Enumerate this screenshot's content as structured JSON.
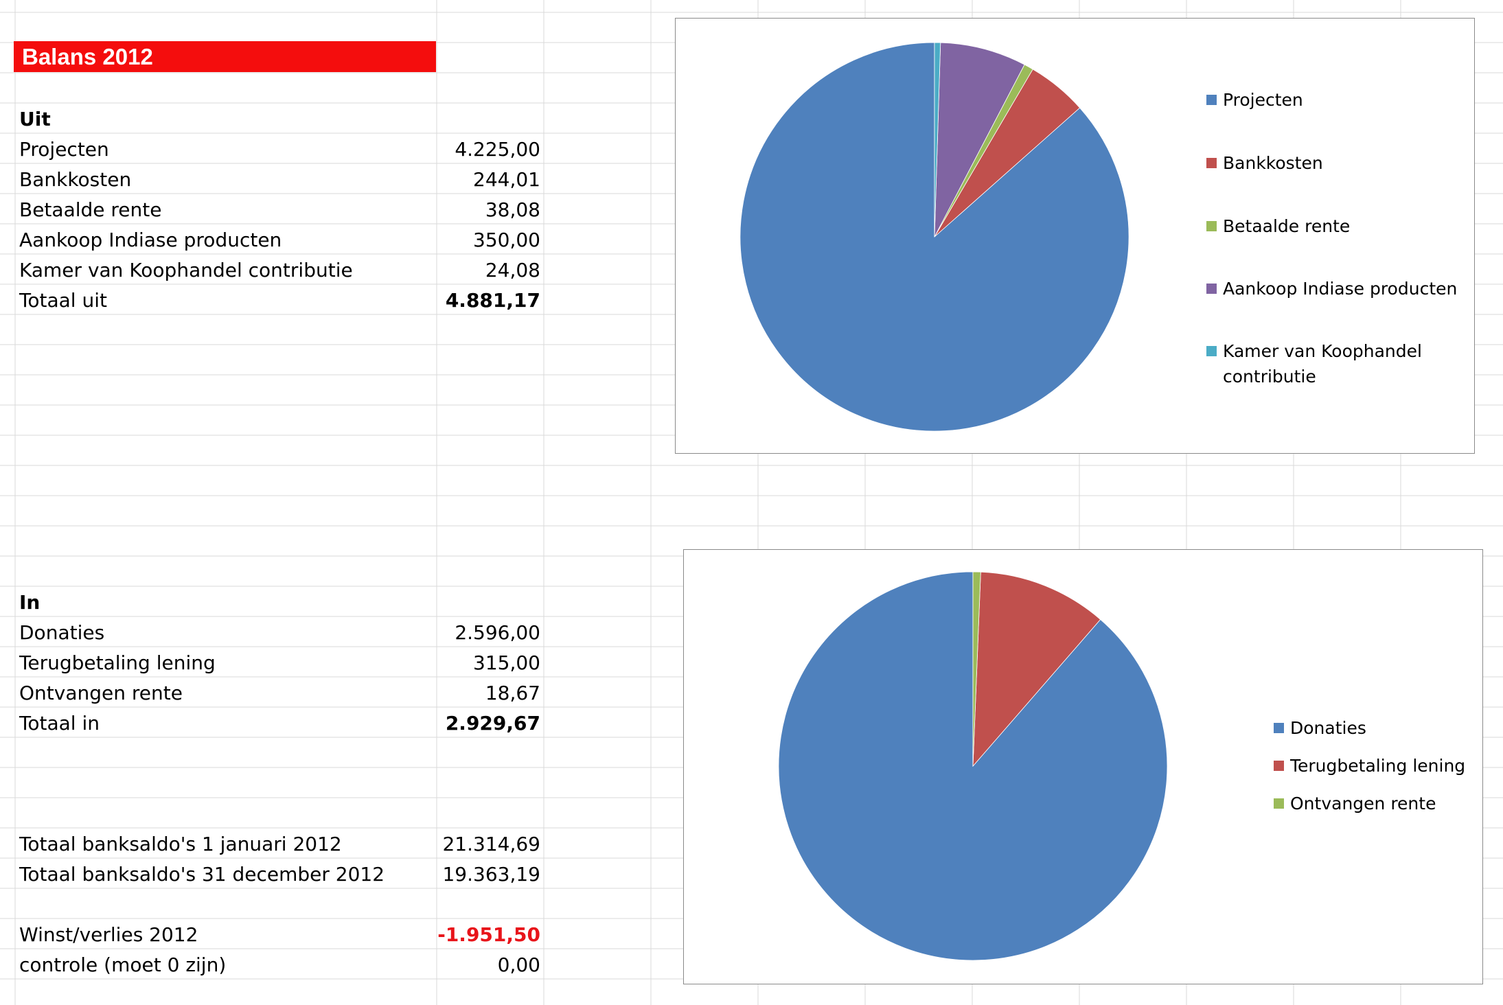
{
  "sheet": {
    "title": "Balans 2012",
    "uit": {
      "header": "Uit",
      "rows": [
        {
          "label": "Projecten",
          "value": "4.225,00"
        },
        {
          "label": "Bankkosten",
          "value": "244,01"
        },
        {
          "label": "Betaalde rente",
          "value": "38,08"
        },
        {
          "label": "Aankoop Indiase producten",
          "value": "350,00"
        },
        {
          "label": "Kamer van Koophandel contributie",
          "value": "24,08"
        }
      ],
      "total_label": "Totaal uit",
      "total_value": "4.881,17"
    },
    "in": {
      "header": "In",
      "rows": [
        {
          "label": "Donaties",
          "value": "2.596,00"
        },
        {
          "label": "Terugbetaling lening",
          "value": "315,00"
        },
        {
          "label": "Ontvangen rente",
          "value": "18,67"
        }
      ],
      "total_label": "Totaal in",
      "total_value": "2.929,67"
    },
    "saldo": {
      "start_label": "Totaal banksaldo's 1 januari 2012",
      "start_value": "21.314,69",
      "end_label": "Totaal banksaldo's 31 december 2012",
      "end_value": "19.363,19"
    },
    "result": {
      "winst_label": "Winst/verlies 2012",
      "winst_value": "-1.951,50",
      "controle_label": "controle (moet 0 zijn)",
      "controle_value": "0,00"
    }
  },
  "colors": {
    "title_bg": "#f40d0d",
    "negative": "#e8141a",
    "series": [
      "#4f81bd",
      "#c0504d",
      "#9bbb59",
      "#8064a2",
      "#4bacc6"
    ]
  },
  "chart_data": [
    {
      "type": "pie",
      "title": "",
      "categories": [
        "Projecten",
        "Bankkosten",
        "Betaalde rente",
        "Aankoop Indiase producten",
        "Kamer van Koophandel contributie"
      ],
      "values": [
        4225.0,
        244.01,
        38.08,
        350.0,
        24.08
      ],
      "legend": "right"
    },
    {
      "type": "pie",
      "title": "",
      "categories": [
        "Donaties",
        "Terugbetaling lening",
        "Ontvangen rente"
      ],
      "values": [
        2596.0,
        315.0,
        18.67
      ],
      "legend": "right"
    }
  ]
}
